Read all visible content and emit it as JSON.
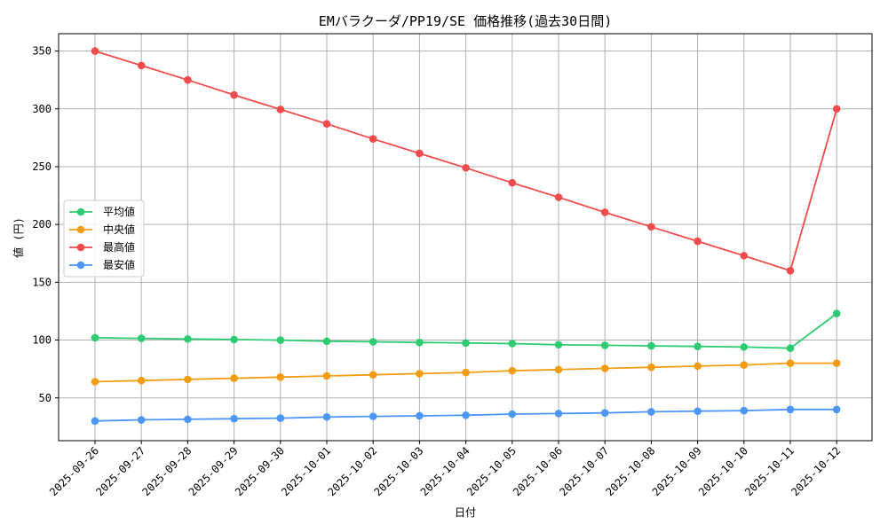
{
  "chart_data": {
    "type": "line",
    "title": "EMバラクーダ/PP19/SE 価格推移(過去30日間)",
    "xlabel": "日付",
    "ylabel": "値 (円)",
    "grid": true,
    "legend_position": "center-left",
    "categories": [
      "2025-09-26",
      "2025-09-27",
      "2025-09-28",
      "2025-09-29",
      "2025-09-30",
      "2025-10-01",
      "2025-10-02",
      "2025-10-03",
      "2025-10-04",
      "2025-10-05",
      "2025-10-06",
      "2025-10-07",
      "2025-10-08",
      "2025-10-09",
      "2025-10-10",
      "2025-10-11",
      "2025-10-12"
    ],
    "yticks": [
      50,
      100,
      150,
      200,
      250,
      300,
      350
    ],
    "ylim": [
      13,
      365
    ],
    "series": [
      {
        "name": "平均値",
        "color": "#2ecc71",
        "values": [
          102,
          101.5,
          101,
          100.5,
          100,
          99,
          98.5,
          98,
          97.5,
          97,
          96,
          95.5,
          95,
          94.5,
          94,
          93,
          123
        ]
      },
      {
        "name": "中央値",
        "color": "#f39c12",
        "values": [
          64,
          65,
          66,
          67,
          68,
          69,
          70,
          71,
          72,
          73.5,
          74.5,
          75.5,
          76.5,
          77.5,
          78.5,
          80,
          80
        ]
      },
      {
        "name": "最高値",
        "color": "#f14c4c",
        "values": [
          350,
          337.5,
          325,
          312,
          299.5,
          287,
          274,
          261.5,
          249,
          236,
          223.5,
          210.5,
          198,
          185.5,
          173,
          160,
          300
        ]
      },
      {
        "name": "最安値",
        "color": "#4c96f7",
        "values": [
          30,
          31,
          31.5,
          32,
          32.5,
          33.5,
          34,
          34.5,
          35,
          36,
          36.5,
          37,
          38,
          38.5,
          39,
          40,
          40
        ]
      }
    ]
  }
}
